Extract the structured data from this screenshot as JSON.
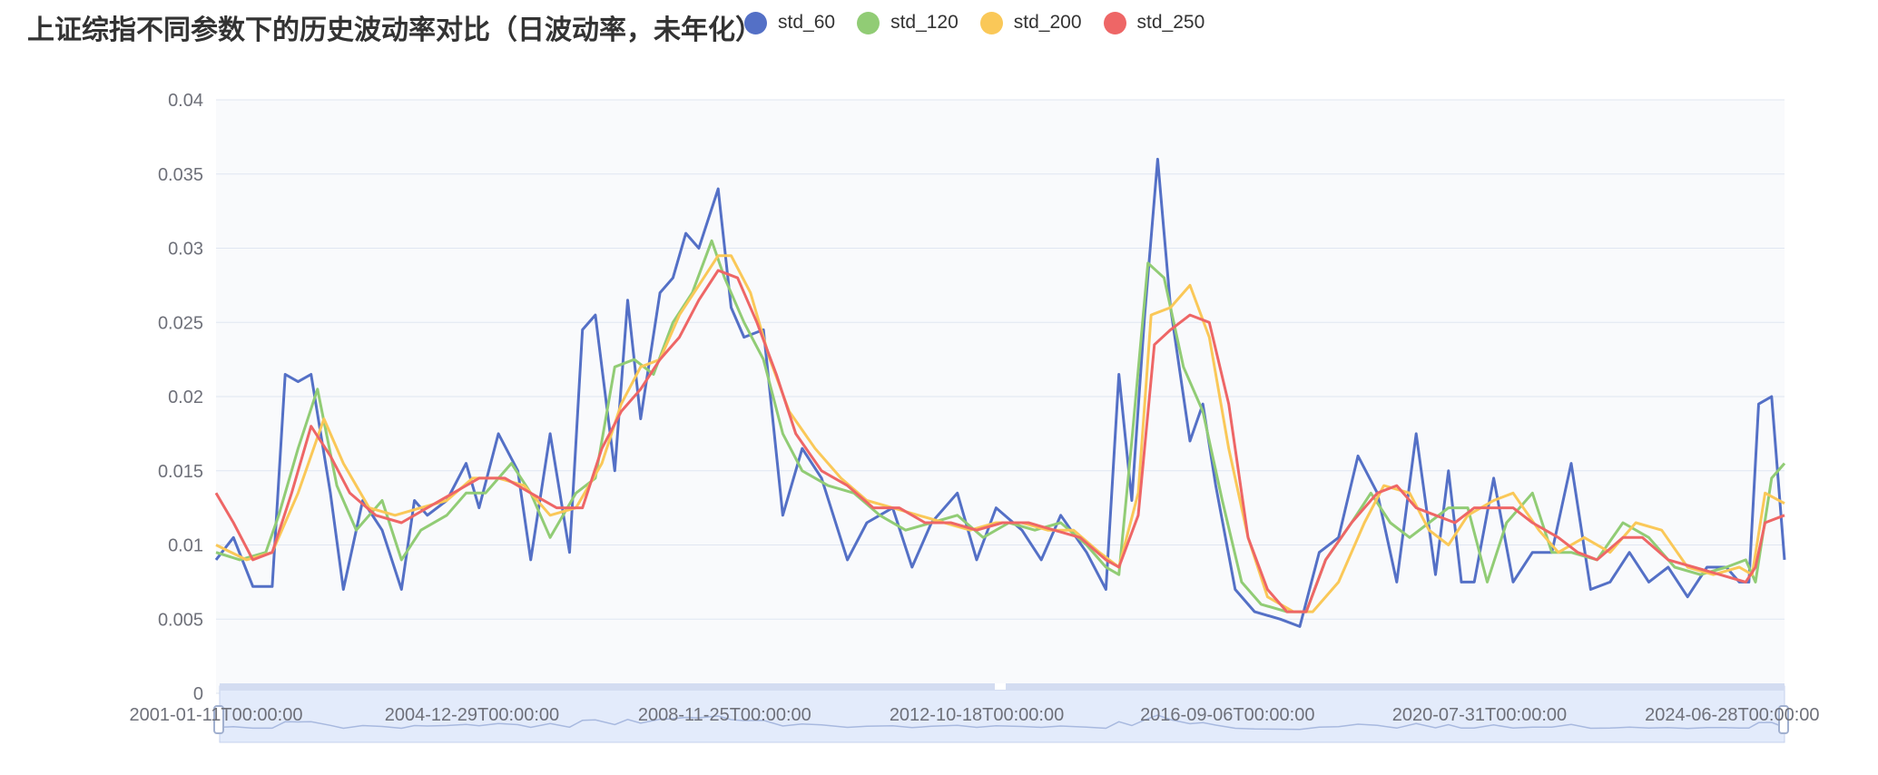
{
  "chart_title": "上证综指不同参数下的历史波动率对比（日波动率，未年化）",
  "chart_data": {
    "type": "line",
    "title": "上证综指不同参数下的历史波动率对比（日波动率，未年化）",
    "xlabel": "",
    "ylabel": "",
    "x_tick_labels": [
      "2001-01-11T00:00:00",
      "2004-12-29T00:00:00",
      "2008-11-25T00:00:00",
      "2012-10-18T00:00:00",
      "2016-09-06T00:00:00",
      "2020-07-31T00:00:00",
      "2024-06-28T00:00:00"
    ],
    "x_tick_positions": [
      2001.03,
      2004.99,
      2008.9,
      2012.8,
      2016.68,
      2020.58,
      2024.49
    ],
    "y_tick_labels": [
      "0",
      "0.005",
      "0.01",
      "0.015",
      "0.02",
      "0.025",
      "0.03",
      "0.035",
      "0.04"
    ],
    "y_ticks": [
      0,
      0.005,
      0.01,
      0.015,
      0.02,
      0.025,
      0.03,
      0.035,
      0.04
    ],
    "xlim": [
      2001.03,
      2025.3
    ],
    "ylim": [
      0,
      0.04
    ],
    "grid": true,
    "legend_position": "top",
    "has_datazoom_slider": true,
    "series": [
      {
        "name": "std_60",
        "color": "#5470c6",
        "x": [
          2001.03,
          2001.3,
          2001.6,
          2001.9,
          2002.1,
          2002.3,
          2002.5,
          2002.8,
          2003.0,
          2003.3,
          2003.6,
          2003.9,
          2004.1,
          2004.3,
          2004.6,
          2004.9,
          2005.1,
          2005.4,
          2005.7,
          2005.9,
          2006.2,
          2006.5,
          2006.7,
          2006.9,
          2007.2,
          2007.4,
          2007.6,
          2007.9,
          2008.1,
          2008.3,
          2008.5,
          2008.8,
          2009.0,
          2009.2,
          2009.5,
          2009.8,
          2010.1,
          2010.4,
          2010.8,
          2011.1,
          2011.5,
          2011.8,
          2012.1,
          2012.5,
          2012.8,
          2013.1,
          2013.5,
          2013.8,
          2014.1,
          2014.5,
          2014.8,
          2015.0,
          2015.2,
          2015.4,
          2015.6,
          2015.8,
          2016.1,
          2016.3,
          2016.5,
          2016.8,
          2017.1,
          2017.5,
          2017.8,
          2018.1,
          2018.4,
          2018.7,
          2019.0,
          2019.3,
          2019.6,
          2019.9,
          2020.1,
          2020.3,
          2020.5,
          2020.8,
          2021.1,
          2021.4,
          2021.7,
          2022.0,
          2022.3,
          2022.6,
          2022.9,
          2023.2,
          2023.5,
          2023.8,
          2024.1,
          2024.4,
          2024.6,
          2024.75,
          2024.9,
          2025.1,
          2025.3
        ],
        "values": [
          0.009,
          0.0105,
          0.0072,
          0.0072,
          0.0215,
          0.021,
          0.0215,
          0.0135,
          0.007,
          0.013,
          0.011,
          0.007,
          0.013,
          0.012,
          0.013,
          0.0155,
          0.0125,
          0.0175,
          0.015,
          0.009,
          0.0175,
          0.0095,
          0.0245,
          0.0255,
          0.015,
          0.0265,
          0.0185,
          0.027,
          0.028,
          0.031,
          0.03,
          0.034,
          0.026,
          0.024,
          0.0245,
          0.012,
          0.0165,
          0.0145,
          0.009,
          0.0115,
          0.0125,
          0.0085,
          0.0115,
          0.0135,
          0.009,
          0.0125,
          0.011,
          0.009,
          0.012,
          0.0095,
          0.007,
          0.0215,
          0.013,
          0.0255,
          0.036,
          0.026,
          0.017,
          0.0195,
          0.014,
          0.007,
          0.0055,
          0.005,
          0.0045,
          0.0095,
          0.0105,
          0.016,
          0.0135,
          0.0075,
          0.0175,
          0.008,
          0.015,
          0.0075,
          0.0075,
          0.0145,
          0.0075,
          0.0095,
          0.0095,
          0.0155,
          0.007,
          0.0075,
          0.0095,
          0.0075,
          0.0085,
          0.0065,
          0.0085,
          0.0085,
          0.0075,
          0.0075,
          0.0195,
          0.02,
          0.009
        ]
      },
      {
        "name": "std_120",
        "color": "#91cc75",
        "x": [
          2001.03,
          2001.4,
          2001.8,
          2002.0,
          2002.3,
          2002.6,
          2002.9,
          2003.2,
          2003.6,
          2003.9,
          2004.2,
          2004.6,
          2004.9,
          2005.2,
          2005.6,
          2005.9,
          2006.2,
          2006.6,
          2006.9,
          2007.2,
          2007.5,
          2007.8,
          2008.1,
          2008.4,
          2008.7,
          2008.9,
          2009.2,
          2009.5,
          2009.8,
          2010.1,
          2010.5,
          2010.9,
          2011.3,
          2011.7,
          2012.1,
          2012.5,
          2012.9,
          2013.3,
          2013.7,
          2014.1,
          2014.5,
          2014.8,
          2015.0,
          2015.2,
          2015.45,
          2015.7,
          2016.0,
          2016.3,
          2016.6,
          2016.9,
          2017.2,
          2017.6,
          2017.9,
          2018.2,
          2018.6,
          2018.9,
          2019.2,
          2019.5,
          2019.8,
          2020.1,
          2020.4,
          2020.7,
          2021.0,
          2021.4,
          2021.7,
          2022.0,
          2022.4,
          2022.8,
          2023.2,
          2023.6,
          2024.0,
          2024.4,
          2024.7,
          2024.85,
          2025.1,
          2025.3
        ],
        "values": [
          0.0095,
          0.009,
          0.0095,
          0.012,
          0.0165,
          0.0205,
          0.014,
          0.011,
          0.013,
          0.009,
          0.011,
          0.012,
          0.0135,
          0.0135,
          0.0155,
          0.0135,
          0.0105,
          0.0135,
          0.0145,
          0.022,
          0.0225,
          0.0215,
          0.025,
          0.027,
          0.0305,
          0.028,
          0.025,
          0.0225,
          0.0175,
          0.015,
          0.014,
          0.0135,
          0.012,
          0.011,
          0.0115,
          0.012,
          0.0105,
          0.0115,
          0.011,
          0.0115,
          0.01,
          0.0085,
          0.008,
          0.017,
          0.029,
          0.028,
          0.022,
          0.019,
          0.013,
          0.0075,
          0.006,
          0.0055,
          0.0055,
          0.009,
          0.0115,
          0.0135,
          0.0115,
          0.0105,
          0.0115,
          0.0125,
          0.0125,
          0.0075,
          0.0115,
          0.0135,
          0.0095,
          0.0095,
          0.009,
          0.0115,
          0.0105,
          0.0085,
          0.008,
          0.0085,
          0.009,
          0.0075,
          0.0145,
          0.0155
        ]
      },
      {
        "name": "std_200",
        "color": "#fac858",
        "x": [
          2001.03,
          2001.5,
          2001.9,
          2002.3,
          2002.7,
          2003.0,
          2003.4,
          2003.8,
          2004.2,
          2004.6,
          2005.0,
          2005.4,
          2005.8,
          2006.2,
          2006.6,
          2007.0,
          2007.3,
          2007.6,
          2007.9,
          2008.2,
          2008.5,
          2008.8,
          2009.0,
          2009.3,
          2009.6,
          2009.9,
          2010.3,
          2010.7,
          2011.1,
          2011.5,
          2011.9,
          2012.3,
          2012.7,
          2013.1,
          2013.5,
          2013.9,
          2014.3,
          2014.7,
          2015.0,
          2015.3,
          2015.5,
          2015.8,
          2016.1,
          2016.4,
          2016.7,
          2017.0,
          2017.3,
          2017.7,
          2018.0,
          2018.4,
          2018.8,
          2019.1,
          2019.5,
          2019.8,
          2020.1,
          2020.4,
          2020.8,
          2021.1,
          2021.5,
          2021.8,
          2022.2,
          2022.6,
          2023.0,
          2023.4,
          2023.8,
          2024.2,
          2024.6,
          2024.8,
          2025.0,
          2025.3
        ],
        "values": [
          0.01,
          0.009,
          0.0095,
          0.0135,
          0.0185,
          0.0155,
          0.0125,
          0.012,
          0.0125,
          0.013,
          0.0145,
          0.0145,
          0.014,
          0.012,
          0.0125,
          0.0155,
          0.0195,
          0.022,
          0.0225,
          0.0255,
          0.0275,
          0.0295,
          0.0295,
          0.027,
          0.0225,
          0.019,
          0.0165,
          0.0145,
          0.013,
          0.0125,
          0.012,
          0.0115,
          0.011,
          0.0115,
          0.0115,
          0.011,
          0.011,
          0.0095,
          0.0085,
          0.0135,
          0.0255,
          0.026,
          0.0275,
          0.024,
          0.0165,
          0.0105,
          0.0065,
          0.0055,
          0.0055,
          0.0075,
          0.0115,
          0.014,
          0.0135,
          0.011,
          0.01,
          0.012,
          0.013,
          0.0135,
          0.011,
          0.0095,
          0.0105,
          0.0095,
          0.0115,
          0.011,
          0.0085,
          0.008,
          0.0085,
          0.008,
          0.0135,
          0.0128
        ]
      },
      {
        "name": "std_250",
        "color": "#ee6666",
        "x": [
          2001.03,
          2001.3,
          2001.6,
          2001.9,
          2002.2,
          2002.5,
          2002.8,
          2003.1,
          2003.5,
          2003.9,
          2004.3,
          2004.7,
          2005.1,
          2005.5,
          2005.9,
          2006.3,
          2006.7,
          2007.0,
          2007.3,
          2007.6,
          2007.9,
          2008.2,
          2008.5,
          2008.8,
          2009.1,
          2009.4,
          2009.7,
          2010.0,
          2010.4,
          2010.8,
          2011.2,
          2011.6,
          2012.0,
          2012.4,
          2012.8,
          2013.2,
          2013.6,
          2014.0,
          2014.4,
          2014.8,
          2015.0,
          2015.3,
          2015.55,
          2015.8,
          2016.1,
          2016.4,
          2016.7,
          2017.0,
          2017.3,
          2017.6,
          2017.9,
          2018.2,
          2018.6,
          2019.0,
          2019.3,
          2019.6,
          2019.9,
          2020.2,
          2020.5,
          2020.8,
          2021.1,
          2021.4,
          2021.8,
          2022.1,
          2022.4,
          2022.8,
          2023.1,
          2023.5,
          2023.9,
          2024.3,
          2024.7,
          2024.85,
          2025.0,
          2025.3
        ],
        "values": [
          0.0135,
          0.0115,
          0.009,
          0.0095,
          0.0135,
          0.018,
          0.016,
          0.0135,
          0.012,
          0.0115,
          0.0125,
          0.0135,
          0.0145,
          0.0145,
          0.0135,
          0.0125,
          0.0125,
          0.0165,
          0.019,
          0.0205,
          0.0225,
          0.024,
          0.0265,
          0.0285,
          0.028,
          0.025,
          0.0215,
          0.0175,
          0.015,
          0.014,
          0.0125,
          0.0125,
          0.0115,
          0.0115,
          0.011,
          0.0115,
          0.0115,
          0.011,
          0.0105,
          0.009,
          0.0085,
          0.012,
          0.0235,
          0.0245,
          0.0255,
          0.025,
          0.0195,
          0.0105,
          0.007,
          0.0055,
          0.0055,
          0.009,
          0.0115,
          0.0135,
          0.014,
          0.0125,
          0.012,
          0.0115,
          0.0125,
          0.0125,
          0.0125,
          0.0115,
          0.0105,
          0.0095,
          0.009,
          0.0105,
          0.0105,
          0.009,
          0.0085,
          0.008,
          0.0075,
          0.0085,
          0.0115,
          0.012
        ]
      }
    ]
  }
}
